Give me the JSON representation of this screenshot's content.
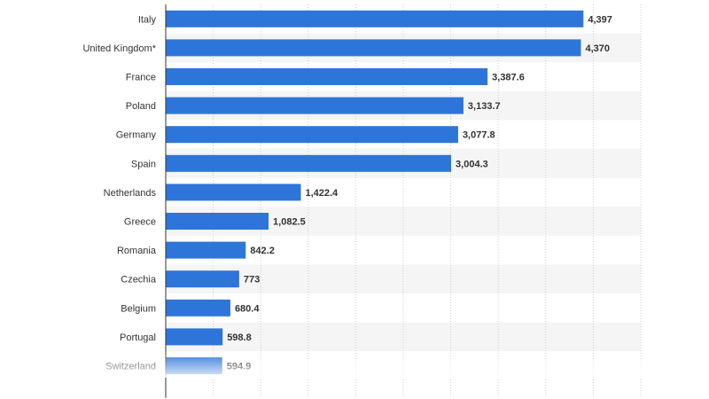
{
  "chart_data": {
    "type": "bar",
    "orientation": "horizontal",
    "categories": [
      "Italy",
      "United Kingdom*",
      "France",
      "Poland",
      "Germany",
      "Spain",
      "Netherlands",
      "Greece",
      "Romania",
      "Czechia",
      "Belgium",
      "Portugal",
      "Switzerland"
    ],
    "values": [
      4397,
      4370,
      3387.6,
      3133.7,
      3077.8,
      3004.3,
      1422.4,
      1082.5,
      842.2,
      773,
      680.4,
      598.8,
      594.9
    ],
    "value_labels": [
      "4,397",
      "4,370",
      "3,387.6",
      "3,133.7",
      "3,077.8",
      "3,004.3",
      "1,422.4",
      "1,082.5",
      "842.2",
      "773",
      "680.4",
      "598.8",
      "594.9"
    ],
    "xlim": [
      0,
      5000
    ],
    "grid": true,
    "bar_color": "#2e75d9",
    "title": "",
    "xlabel": "",
    "ylabel": ""
  }
}
